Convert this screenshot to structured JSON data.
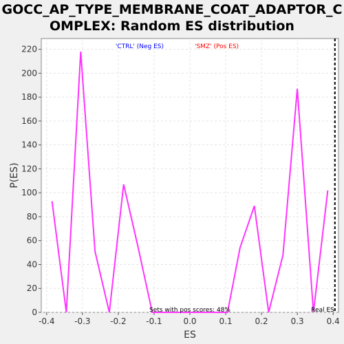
{
  "chart_data": {
    "type": "line",
    "title": "GOCC_AP_TYPE_MEMBRANE_COAT_ADAPTOR_COMPLEX: Random ES distribution",
    "title_lines": [
      "GOCC_AP_TYPE_MEMBRANE_COAT_ADAPTOR_C",
      "OMPLEX: Random ES distribution"
    ],
    "xlabel": "ES",
    "ylabel": "P(ES)",
    "xlim": [
      -0.415,
      0.415
    ],
    "ylim": [
      0,
      229
    ],
    "x_ticks": [
      -0.4,
      -0.3,
      -0.2,
      -0.1,
      0.0,
      0.1,
      0.2,
      0.3,
      0.4
    ],
    "x_tick_labels": [
      "-0.4",
      "-0.3",
      "-0.2",
      "-0.1",
      "0.0",
      "0.1",
      "0.2",
      "0.3",
      "0.4"
    ],
    "y_ticks": [
      0,
      20,
      40,
      60,
      80,
      100,
      120,
      140,
      160,
      180,
      200,
      220
    ],
    "y_tick_labels": [
      "0",
      "20",
      "40",
      "60",
      "80",
      "100",
      "120",
      "140",
      "160",
      "180",
      "200",
      "220"
    ],
    "grid": true,
    "legend": {
      "placement": "top-center",
      "entries": [
        {
          "label": "'CTRL' (Neg ES)",
          "color": "#0000ff"
        },
        {
          "label": "'SMZ' (Pos ES)",
          "color": "#ff0000"
        }
      ]
    },
    "series": [
      {
        "color": "#ff33ff",
        "x": [
          -0.385,
          -0.345,
          -0.305,
          -0.265,
          -0.225,
          -0.185,
          -0.145,
          -0.105,
          0.105,
          0.14,
          0.18,
          0.22,
          0.26,
          0.3,
          0.345,
          0.385
        ],
        "y": [
          93,
          0,
          218,
          51,
          0,
          107,
          55,
          0,
          0,
          54,
          89,
          0,
          48,
          187,
          0,
          102
        ]
      }
    ],
    "real_es": {
      "value": 0.405,
      "label": "Real ES",
      "style": "dashed",
      "color": "#000000"
    },
    "annotation": "Sets with pos scores: 48%"
  }
}
